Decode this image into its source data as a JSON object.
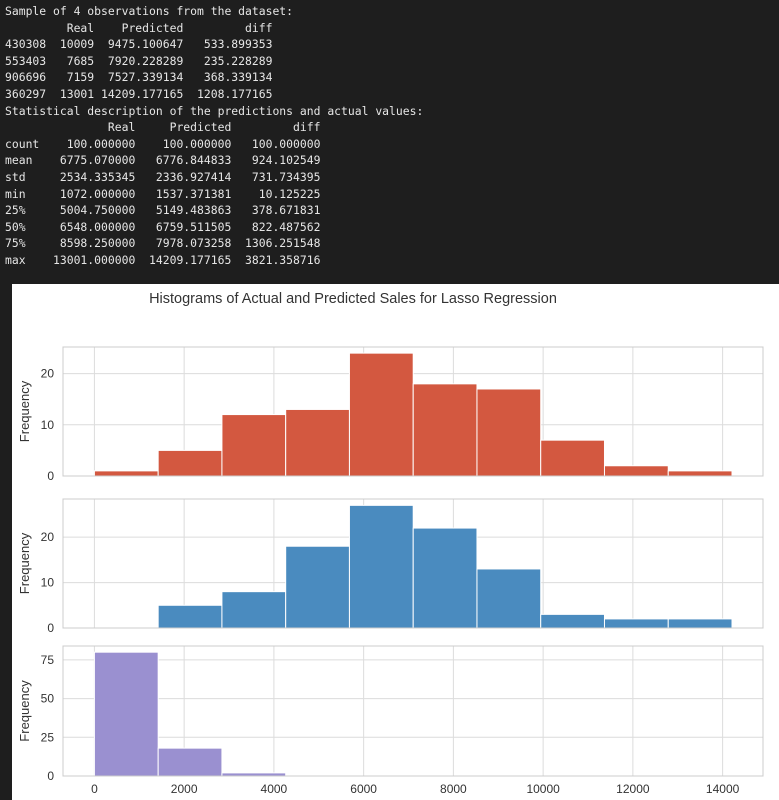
{
  "console": {
    "sample_header": "Sample of 4 observations from the dataset:",
    "sample_columns": [
      "Real",
      "Predicted",
      "diff"
    ],
    "sample_rows": [
      {
        "index": "430308",
        "real": "10009",
        "predicted": "9475.100647",
        "diff": "533.899353"
      },
      {
        "index": "553403",
        "real": "7685",
        "predicted": "7920.228289",
        "diff": "235.228289"
      },
      {
        "index": "906696",
        "real": "7159",
        "predicted": "7527.339134",
        "diff": "368.339134"
      },
      {
        "index": "360297",
        "real": "13001",
        "predicted": "14209.177165",
        "diff": "1208.177165"
      }
    ],
    "stats_header": "Statistical description of the predictions and actual values:",
    "stats_columns": [
      "Real",
      "Predicted",
      "diff"
    ],
    "stats_rows": [
      {
        "index": "count",
        "real": "100.000000",
        "predicted": "100.000000",
        "diff": "100.000000"
      },
      {
        "index": "mean",
        "real": "6775.070000",
        "predicted": "6776.844833",
        "diff": "924.102549"
      },
      {
        "index": "std",
        "real": "2534.335345",
        "predicted": "2336.927414",
        "diff": "731.734395"
      },
      {
        "index": "min",
        "real": "1072.000000",
        "predicted": "1537.371381",
        "diff": "10.125225"
      },
      {
        "index": "25%",
        "real": "5004.750000",
        "predicted": "5149.483863",
        "diff": "378.671831"
      },
      {
        "index": "50%",
        "real": "6548.000000",
        "predicted": "6759.511505",
        "diff": "822.487562"
      },
      {
        "index": "75%",
        "real": "8598.250000",
        "predicted": "7978.073258",
        "diff": "1306.251548"
      },
      {
        "index": "max",
        "real": "13001.000000",
        "predicted": "14209.177165",
        "diff": "3821.358716"
      }
    ]
  },
  "chart_data": {
    "type": "bar",
    "title": "Histograms of Actual and Predicted Sales for Lasso Regression",
    "grid": true,
    "xlim": [
      -700,
      14900
    ],
    "x_ticks": [
      0,
      2000,
      4000,
      6000,
      8000,
      10000,
      12000,
      14000
    ],
    "panels": [
      {
        "ylabel": "Frequency",
        "color": "#d35840",
        "ylim": [
          0,
          25.2
        ],
        "y_ticks": [
          0,
          10,
          20
        ],
        "bin_edges": [
          0,
          1420.9,
          2841.8,
          4262.8,
          5683.7,
          7104.6,
          8525.5,
          9946.4,
          11367.3,
          12788.3,
          14209.2
        ],
        "counts": [
          1,
          5,
          12,
          13,
          24,
          18,
          17,
          7,
          2,
          1
        ]
      },
      {
        "ylabel": "Frequency",
        "color": "#4a8bbf",
        "ylim": [
          0,
          28.4
        ],
        "y_ticks": [
          0,
          10,
          20
        ],
        "bin_edges": [
          0,
          1420.9,
          2841.8,
          4262.8,
          5683.7,
          7104.6,
          8525.5,
          9946.4,
          11367.3,
          12788.3,
          14209.2
        ],
        "counts": [
          0,
          5,
          8,
          18,
          27,
          22,
          13,
          3,
          2,
          2
        ]
      },
      {
        "ylabel": "Frequency",
        "color": "#9a90d0",
        "ylim": [
          0,
          84
        ],
        "y_ticks": [
          0,
          25,
          50,
          75
        ],
        "bin_edges": [
          0,
          1420.9,
          2841.8,
          4262.8
        ],
        "counts": [
          80,
          18,
          2
        ]
      }
    ]
  }
}
